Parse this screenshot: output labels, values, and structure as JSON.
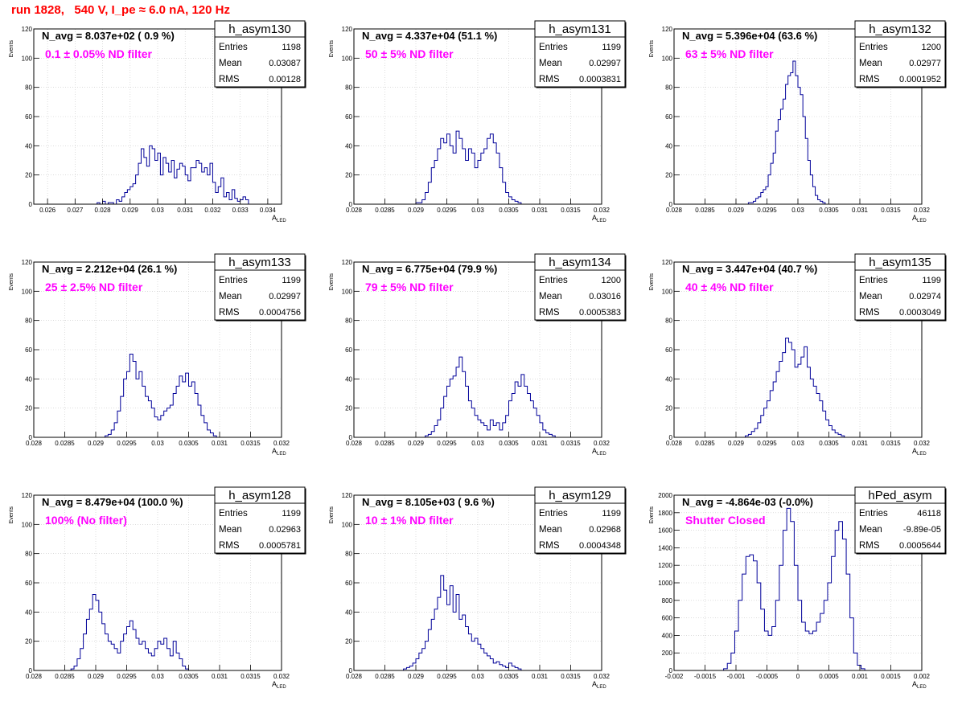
{
  "page_title": "run 1828,   540 V, I_pe ≈ 6.0 nA, 120 Hz",
  "stats_labels": {
    "entries": "Entries",
    "mean": "Mean",
    "rms": "RMS"
  },
  "y_axis_label": "Events",
  "x_axis_label": {
    "main": "A",
    "sub": "LED"
  },
  "colors": {
    "histogram": "#000099",
    "annotation": "#ff00ff",
    "title": "#ff0000",
    "grid": "#c8c8c8"
  },
  "chart_data": [
    {
      "type": "histogram",
      "name": "h_asym130",
      "navg_text": "N_avg = 8.037e+02 ( 0.9 %)",
      "filter_text": "0.1 ± 0.05% ND filter",
      "stats": {
        "entries": "1198",
        "mean": "0.03087",
        "rms": "0.00128"
      },
      "xlim": [
        0.0255,
        0.0345
      ],
      "ylim": [
        0,
        120
      ],
      "xticks": [
        0.026,
        0.027,
        0.028,
        0.029,
        0.03,
        0.031,
        0.032,
        0.033,
        0.034
      ],
      "xtick_labels": [
        "0.026",
        "0.027",
        "0.028",
        "0.029",
        "0.03",
        "0.031",
        "0.032",
        "0.033",
        "0.034"
      ],
      "yticks": [
        0,
        20,
        40,
        60,
        80,
        100,
        120
      ],
      "ytick_labels": [
        "0",
        "20",
        "40",
        "60",
        "80",
        "100",
        "120"
      ],
      "counts": [
        1,
        0,
        2,
        0,
        1,
        1,
        0,
        3,
        2,
        5,
        8,
        10,
        12,
        14,
        20,
        28,
        38,
        32,
        26,
        40,
        38,
        30,
        35,
        20,
        32,
        28,
        22,
        30,
        18,
        24,
        28,
        26,
        20,
        16,
        25,
        25,
        30,
        28,
        22,
        25,
        20,
        28,
        15,
        8,
        12,
        18,
        5,
        8,
        3,
        10,
        4,
        2,
        3,
        5,
        3
      ],
      "bins_x0": 0.0278,
      "bins_dx": 0.0001
    },
    {
      "type": "histogram",
      "name": "h_asym131",
      "navg_text": "N_avg = 4.337e+04 (51.1 %)",
      "filter_text": "50 ± 5% ND filter",
      "stats": {
        "entries": "1199",
        "mean": "0.02997",
        "rms": "0.0003831"
      },
      "xlim": [
        0.028,
        0.032
      ],
      "ylim": [
        0,
        120
      ],
      "xticks": [
        0.028,
        0.0285,
        0.029,
        0.0295,
        0.03,
        0.0305,
        0.031,
        0.0315,
        0.032
      ],
      "xtick_labels": [
        "0.028",
        "0.0285",
        "0.029",
        "0.0295",
        "0.03",
        "0.0305",
        "0.031",
        "0.0315",
        "0.032"
      ],
      "yticks": [
        0,
        20,
        40,
        60,
        80,
        100,
        120
      ],
      "ytick_labels": [
        "0",
        "20",
        "40",
        "60",
        "80",
        "100",
        "120"
      ],
      "counts": [
        1,
        1,
        3,
        8,
        15,
        25,
        30,
        38,
        45,
        42,
        48,
        40,
        35,
        50,
        45,
        38,
        30,
        38,
        35,
        25,
        30,
        35,
        38,
        45,
        48,
        42,
        35,
        25,
        15,
        8,
        5,
        3,
        2,
        1
      ],
      "bins_x0": 0.029,
      "bins_dx": 5e-05
    },
    {
      "type": "histogram",
      "name": "h_asym132",
      "navg_text": "N_avg = 5.396e+04 (63.6 %)",
      "filter_text": "63 ± 5% ND filter",
      "stats": {
        "entries": "1200",
        "mean": "0.02977",
        "rms": "0.0001952"
      },
      "xlim": [
        0.028,
        0.032
      ],
      "ylim": [
        0,
        120
      ],
      "xticks": [
        0.028,
        0.0285,
        0.029,
        0.0295,
        0.03,
        0.0305,
        0.031,
        0.0315,
        0.032
      ],
      "xtick_labels": [
        "0.028",
        "0.0285",
        "0.029",
        "0.0295",
        "0.03",
        "0.0305",
        "0.031",
        "0.0315",
        "0.032"
      ],
      "yticks": [
        0,
        20,
        40,
        60,
        80,
        100,
        120
      ],
      "ytick_labels": [
        "0",
        "20",
        "40",
        "60",
        "80",
        "100",
        "120"
      ],
      "counts": [
        1,
        1,
        2,
        4,
        5,
        8,
        10,
        12,
        20,
        28,
        35,
        50,
        58,
        65,
        72,
        82,
        88,
        90,
        98,
        88,
        80,
        75,
        60,
        45,
        30,
        20,
        12,
        6,
        3,
        2,
        1
      ],
      "bins_x0": 0.0292,
      "bins_dx": 4e-05
    },
    {
      "type": "histogram",
      "name": "h_asym133",
      "navg_text": "N_avg = 2.212e+04 (26.1 %)",
      "filter_text": "25 ± 2.5% ND filter",
      "stats": {
        "entries": "1199",
        "mean": "0.02997",
        "rms": "0.0004756"
      },
      "xlim": [
        0.028,
        0.032
      ],
      "ylim": [
        0,
        120
      ],
      "xticks": [
        0.028,
        0.0285,
        0.029,
        0.0295,
        0.03,
        0.0305,
        0.031,
        0.0315,
        0.032
      ],
      "xtick_labels": [
        "0.028",
        "0.0285",
        "0.029",
        "0.0295",
        "0.03",
        "0.0305",
        "0.031",
        "0.0315",
        "0.032"
      ],
      "yticks": [
        0,
        20,
        40,
        60,
        80,
        100,
        120
      ],
      "ytick_labels": [
        "0",
        "20",
        "40",
        "60",
        "80",
        "100",
        "120"
      ],
      "counts": [
        1,
        2,
        5,
        10,
        18,
        28,
        40,
        45,
        57,
        52,
        40,
        45,
        35,
        28,
        25,
        20,
        14,
        12,
        15,
        18,
        20,
        22,
        30,
        35,
        42,
        38,
        44,
        35,
        38,
        30,
        22,
        15,
        10,
        5,
        3,
        1
      ],
      "bins_x0": 0.02915,
      "bins_dx": 5e-05
    },
    {
      "type": "histogram",
      "name": "h_asym134",
      "navg_text": "N_avg = 6.775e+04 (79.9 %)",
      "filter_text": "79 ± 5% ND filter",
      "stats": {
        "entries": "1200",
        "mean": "0.03016",
        "rms": "0.0005383"
      },
      "xlim": [
        0.028,
        0.032
      ],
      "ylim": [
        0,
        120
      ],
      "xticks": [
        0.028,
        0.0285,
        0.029,
        0.0295,
        0.03,
        0.0305,
        0.031,
        0.0315,
        0.032
      ],
      "xtick_labels": [
        "0.028",
        "0.0285",
        "0.029",
        "0.0295",
        "0.03",
        "0.0305",
        "0.031",
        "0.0315",
        "0.032"
      ],
      "yticks": [
        0,
        20,
        40,
        60,
        80,
        100,
        120
      ],
      "ytick_labels": [
        "0",
        "20",
        "40",
        "60",
        "80",
        "100",
        "120"
      ],
      "counts": [
        1,
        2,
        4,
        8,
        12,
        20,
        28,
        35,
        40,
        42,
        48,
        55,
        45,
        35,
        25,
        20,
        15,
        12,
        10,
        8,
        5,
        12,
        8,
        10,
        5,
        10,
        15,
        25,
        30,
        38,
        35,
        43,
        35,
        30,
        25,
        20,
        15,
        10,
        5,
        3,
        2,
        1
      ],
      "bins_x0": 0.02915,
      "bins_dx": 5e-05
    },
    {
      "type": "histogram",
      "name": "h_asym135",
      "navg_text": "N_avg = 3.447e+04 (40.7 %)",
      "filter_text": "40 ± 4% ND filter",
      "stats": {
        "entries": "1199",
        "mean": "0.02974",
        "rms": "0.0003049"
      },
      "xlim": [
        0.028,
        0.032
      ],
      "ylim": [
        0,
        120
      ],
      "xticks": [
        0.028,
        0.0285,
        0.029,
        0.0295,
        0.03,
        0.0305,
        0.031,
        0.0315,
        0.032
      ],
      "xtick_labels": [
        "0.028",
        "0.0285",
        "0.029",
        "0.0295",
        "0.03",
        "0.0305",
        "0.031",
        "0.0315",
        "0.032"
      ],
      "yticks": [
        0,
        20,
        40,
        60,
        80,
        100,
        120
      ],
      "ytick_labels": [
        "0",
        "20",
        "40",
        "60",
        "80",
        "100",
        "120"
      ],
      "counts": [
        1,
        2,
        4,
        6,
        10,
        15,
        20,
        25,
        32,
        38,
        45,
        52,
        58,
        68,
        65,
        60,
        48,
        50,
        55,
        62,
        48,
        40,
        35,
        30,
        25,
        18,
        12,
        8,
        5,
        3,
        2,
        1
      ],
      "bins_x0": 0.02915,
      "bins_dx": 5e-05
    },
    {
      "type": "histogram",
      "name": "h_asym128",
      "navg_text": "N_avg = 8.479e+04 (100.0 %)",
      "filter_text": "100% (No filter)",
      "stats": {
        "entries": "1199",
        "mean": "0.02963",
        "rms": "0.0005781"
      },
      "xlim": [
        0.028,
        0.032
      ],
      "ylim": [
        0,
        120
      ],
      "xticks": [
        0.028,
        0.0285,
        0.029,
        0.0295,
        0.03,
        0.0305,
        0.031,
        0.0315,
        0.032
      ],
      "xtick_labels": [
        "0.028",
        "0.0285",
        "0.029",
        "0.0295",
        "0.03",
        "0.0305",
        "0.031",
        "0.0315",
        "0.032"
      ],
      "yticks": [
        0,
        20,
        40,
        60,
        80,
        100,
        120
      ],
      "ytick_labels": [
        "0",
        "20",
        "40",
        "60",
        "80",
        "100",
        "120"
      ],
      "counts": [
        1,
        3,
        8,
        15,
        25,
        35,
        42,
        52,
        48,
        40,
        32,
        25,
        20,
        18,
        15,
        12,
        20,
        25,
        30,
        34,
        28,
        22,
        18,
        20,
        15,
        12,
        10,
        15,
        20,
        18,
        22,
        15,
        10,
        20,
        12,
        8,
        3,
        1
      ],
      "bins_x0": 0.0286,
      "bins_dx": 5e-05
    },
    {
      "type": "histogram",
      "name": "h_asym129",
      "navg_text": "N_avg = 8.105e+03 ( 9.6 %)",
      "filter_text": "10 ± 1% ND filter",
      "stats": {
        "entries": "1199",
        "mean": "0.02968",
        "rms": "0.0004348"
      },
      "xlim": [
        0.028,
        0.032
      ],
      "ylim": [
        0,
        120
      ],
      "xticks": [
        0.028,
        0.0285,
        0.029,
        0.0295,
        0.03,
        0.0305,
        0.031,
        0.0315,
        0.032
      ],
      "xtick_labels": [
        "0.028",
        "0.0285",
        "0.029",
        "0.0295",
        "0.03",
        "0.0305",
        "0.031",
        "0.0315",
        "0.032"
      ],
      "yticks": [
        0,
        20,
        40,
        60,
        80,
        100,
        120
      ],
      "ytick_labels": [
        "0",
        "20",
        "40",
        "60",
        "80",
        "100",
        "120"
      ],
      "counts": [
        1,
        2,
        3,
        5,
        8,
        12,
        15,
        20,
        28,
        35,
        42,
        50,
        65,
        55,
        45,
        58,
        40,
        52,
        35,
        38,
        30,
        25,
        20,
        22,
        18,
        15,
        12,
        10,
        8,
        5,
        6,
        4,
        3,
        2,
        5,
        3,
        2,
        1
      ],
      "bins_x0": 0.0288,
      "bins_dx": 5e-05
    },
    {
      "type": "histogram",
      "name": "hPed_asym",
      "navg_text": "N_avg = -4.864e-03 (-0.0%)",
      "filter_text": "Shutter Closed",
      "stats": {
        "entries": "46118",
        "mean": "-9.89e-05",
        "rms": "0.0005644"
      },
      "xlim": [
        -0.002,
        0.002
      ],
      "ylim": [
        0,
        2000
      ],
      "xticks": [
        -0.002,
        -0.0015,
        -0.001,
        -0.0005,
        0,
        0.0005,
        0.001,
        0.0015,
        0.002
      ],
      "xtick_labels": [
        "-0.002",
        "-0.0015",
        "-0.001",
        "-0.0005",
        "0",
        "0.0005",
        "0.001",
        "0.0015",
        "0.002"
      ],
      "yticks": [
        0,
        200,
        400,
        600,
        800,
        1000,
        1200,
        1400,
        1600,
        1800,
        2000
      ],
      "ytick_labels": [
        "0",
        "200",
        "400",
        "600",
        "800",
        "1000",
        "1200",
        "1400",
        "1600",
        "1800",
        "2000"
      ],
      "counts": [
        20,
        80,
        200,
        450,
        800,
        1100,
        1300,
        1320,
        1250,
        1000,
        700,
        450,
        400,
        500,
        800,
        1200,
        1600,
        1850,
        1700,
        1200,
        800,
        550,
        450,
        420,
        450,
        550,
        650,
        800,
        1000,
        1300,
        1600,
        1700,
        1500,
        1100,
        600,
        200,
        60,
        20
      ],
      "bins_x0": -0.0012,
      "bins_dx": 6e-05
    }
  ]
}
